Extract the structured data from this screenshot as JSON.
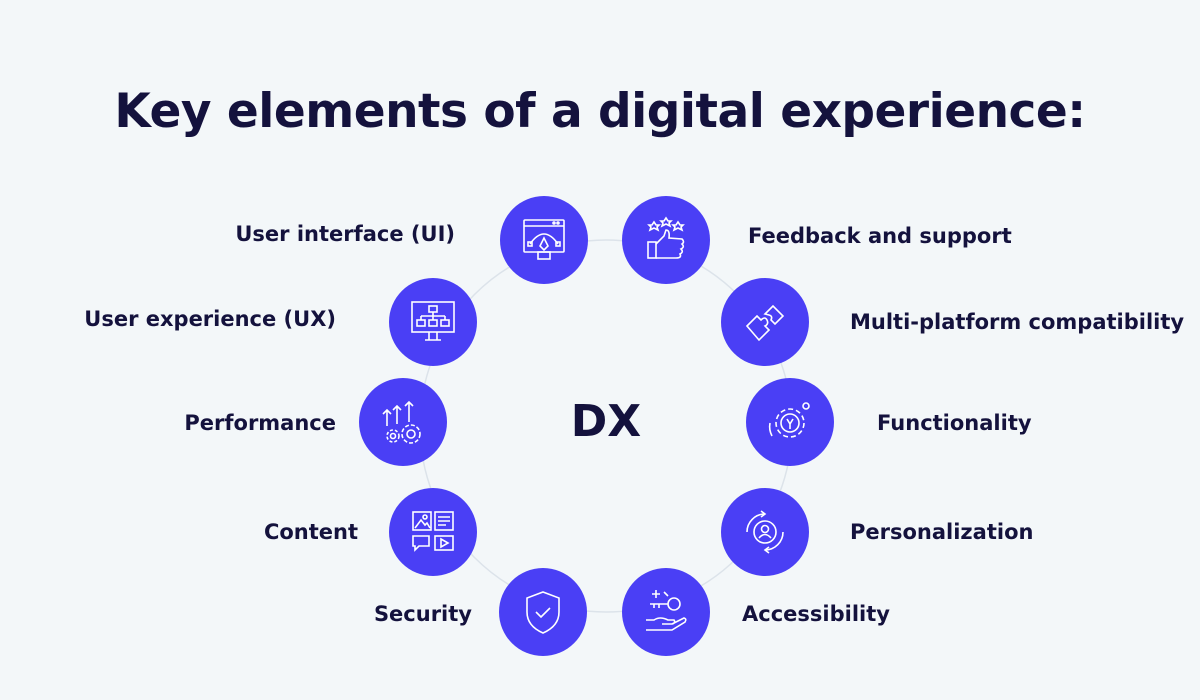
{
  "title": "Key elements of a digital experience:",
  "center_label": "DX",
  "colors": {
    "accent": "#4a3ff5",
    "text": "#14123d",
    "background": "#f3f7f9",
    "ring": "#dce3ea"
  },
  "elements": [
    {
      "label": "User interface (UI)",
      "icon": "design-window-pen-icon"
    },
    {
      "label": "Feedback and support",
      "icon": "thumbs-up-stars-icon"
    },
    {
      "label": "Multi-platform compatibility",
      "icon": "puzzle-pieces-icon"
    },
    {
      "label": "Functionality",
      "icon": "gear-wrench-icon"
    },
    {
      "label": "Personalization",
      "icon": "user-cycle-icon"
    },
    {
      "label": "Accessibility",
      "icon": "hand-key-icon"
    },
    {
      "label": "Security",
      "icon": "shield-check-icon"
    },
    {
      "label": "Content",
      "icon": "media-content-icon"
    },
    {
      "label": "Performance",
      "icon": "gears-arrows-up-icon"
    },
    {
      "label": "User experience (UX)",
      "icon": "monitor-sitemap-icon"
    }
  ]
}
